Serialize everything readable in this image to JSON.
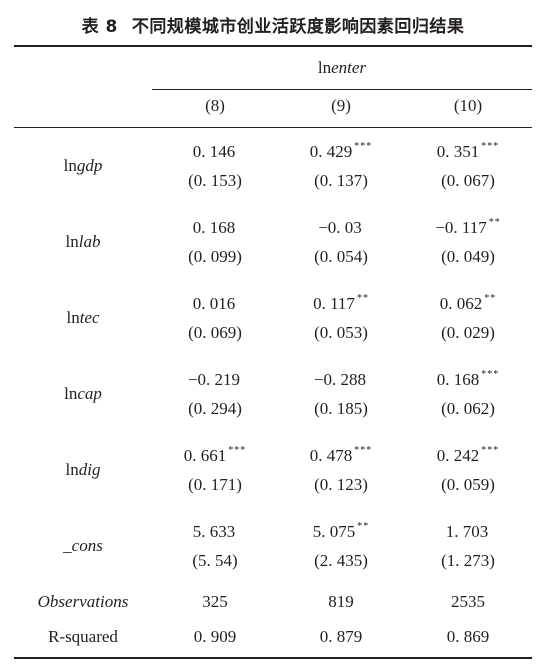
{
  "caption": {
    "label": "表 8",
    "title": "不同规模城市创业活跃度影响因素回归结果"
  },
  "dependent_var": {
    "prefix": "ln",
    "var": "enter"
  },
  "columns": [
    "(8)",
    "(9)",
    "(10)"
  ],
  "rows": [
    {
      "prefix": "ln",
      "var": "gdp",
      "coef": [
        {
          "v": "0. 146",
          "s": ""
        },
        {
          "v": "0. 429",
          "s": "***"
        },
        {
          "v": "0. 351",
          "s": "***"
        }
      ],
      "se": [
        "(0. 153)",
        "(0. 137)",
        "(0. 067)"
      ]
    },
    {
      "prefix": "ln",
      "var": "lab",
      "coef": [
        {
          "v": "0. 168",
          "s": ""
        },
        {
          "v": "−0. 03",
          "s": ""
        },
        {
          "v": "−0. 117",
          "s": "**"
        }
      ],
      "se": [
        "(0. 099)",
        "(0. 054)",
        "(0. 049)"
      ]
    },
    {
      "prefix": "ln",
      "var": "tec",
      "coef": [
        {
          "v": "0. 016",
          "s": ""
        },
        {
          "v": "0. 117",
          "s": "**"
        },
        {
          "v": "0. 062",
          "s": "**"
        }
      ],
      "se": [
        "(0. 069)",
        "(0. 053)",
        "(0. 029)"
      ]
    },
    {
      "prefix": "ln",
      "var": "cap",
      "coef": [
        {
          "v": "−0. 219",
          "s": ""
        },
        {
          "v": "−0. 288",
          "s": ""
        },
        {
          "v": "0. 168",
          "s": "***"
        }
      ],
      "se": [
        "(0. 294)",
        "(0. 185)",
        "(0. 062)"
      ]
    },
    {
      "prefix": "ln",
      "var": "dig",
      "coef": [
        {
          "v": "0. 661",
          "s": "***"
        },
        {
          "v": "0. 478",
          "s": "***"
        },
        {
          "v": "0. 242",
          "s": "***"
        }
      ],
      "se": [
        "(0. 171)",
        "(0. 123)",
        "(0. 059)"
      ]
    },
    {
      "prefix": "",
      "var": "_cons",
      "coef": [
        {
          "v": "5. 633",
          "s": ""
        },
        {
          "v": "5. 075",
          "s": "**"
        },
        {
          "v": "1. 703",
          "s": ""
        }
      ],
      "se": [
        "(5. 54)",
        "(2. 435)",
        "(1. 273)"
      ]
    }
  ],
  "stats": [
    {
      "label": "Observations",
      "italic": true,
      "values": [
        "325",
        "819",
        "2535"
      ]
    },
    {
      "label": "R-squared",
      "italic": false,
      "values": [
        "0. 909",
        "0. 879",
        "0. 869"
      ]
    }
  ]
}
